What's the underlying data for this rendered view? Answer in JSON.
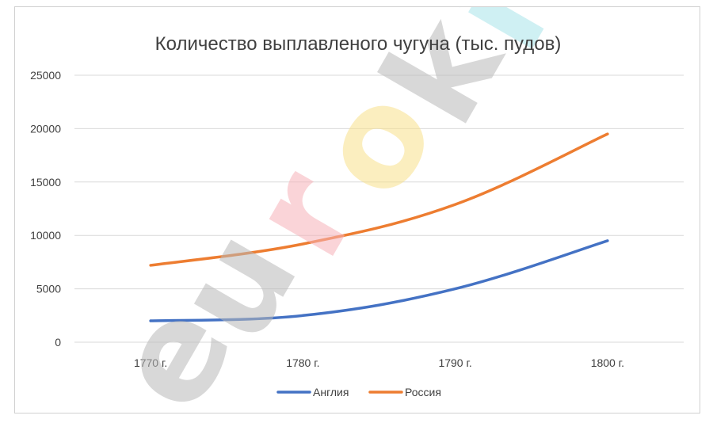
{
  "chart_data": {
    "type": "line",
    "title": "Количество выплавленого чугуна (тыс. пудов)",
    "categories": [
      "1770 г.",
      "1780 г.",
      "1790 г.",
      "1800 г."
    ],
    "yticks": [
      "25000",
      "20000",
      "15000",
      "10000",
      "5000",
      "0"
    ],
    "ylim": [
      0,
      25000
    ],
    "grid": true,
    "legend_position": "bottom",
    "series": [
      {
        "name": "Англия",
        "color": "#4472C4",
        "values": [
          2000,
          2500,
          5000,
          9500
        ]
      },
      {
        "name": "Россия",
        "color": "#ED7D31",
        "values": [
          7200,
          9200,
          12900,
          19500
        ]
      }
    ]
  },
  "watermark": {
    "letters": [
      "e",
      "u",
      "r",
      "o",
      "k",
      "i"
    ],
    "colors": [
      "#b8b8b8",
      "#b8b8b8",
      "#f6b0b8",
      "#f7e08a",
      "#b8b8b8",
      "#a8e4ea"
    ]
  }
}
